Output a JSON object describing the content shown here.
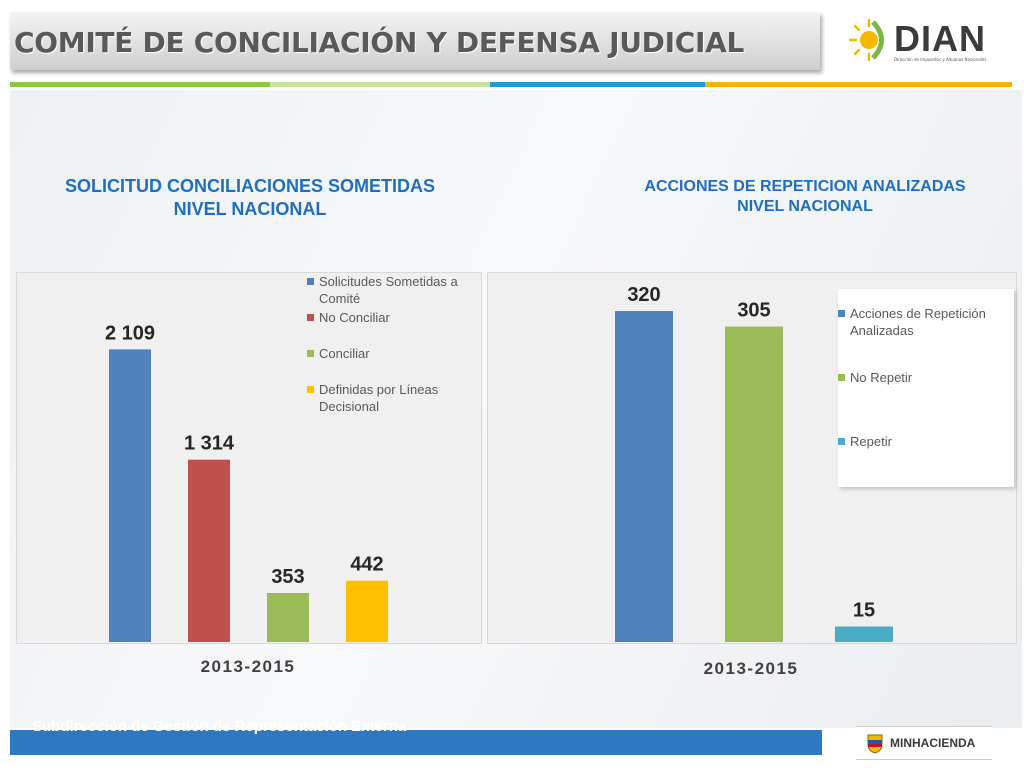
{
  "header": {
    "title": "COMITÉ DE CONCILIACIÓN Y DEFENSA JUDICIAL",
    "logo_text": "DIAN",
    "logo_subtitle": "Dirección de Impuestos y Aduanas Nacionales"
  },
  "footer": {
    "text": "Subdirección de Gestión de Representación Externa",
    "ministry": "MINHACIENDA"
  },
  "colors": {
    "title_text": "#595959",
    "chart_title": "#1f6fbf",
    "footer_bar": "#2d78c0",
    "stripe_green": "#8dc63f",
    "stripe_lightgreen": "#c7e29b",
    "stripe_blue": "#1e9ad6",
    "stripe_yellow": "#f5b800"
  },
  "chart_data": [
    {
      "type": "bar",
      "title": "SOLICITUD CONCILIACIONES SOMETIDAS NIVEL NACIONAL",
      "title_lines": [
        "SOLICITUD CONCILIACIONES SOMETIDAS",
        "NIVEL NACIONAL"
      ],
      "xlabel": "2013-2015",
      "ylim": [
        0,
        2400
      ],
      "grid": false,
      "legend_position": "top-right",
      "series": [
        {
          "name": "Solicitudes Sometidas a Comité",
          "value": 2109,
          "label": "2 109",
          "color": "#4f81bd"
        },
        {
          "name": "No Conciliar",
          "value": 1314,
          "label": "1 314",
          "color": "#c0504d"
        },
        {
          "name": "Conciliar",
          "value": 353,
          "label": "353",
          "color": "#9bbb59"
        },
        {
          "name": "Definidas por Líneas Decisional",
          "value": 442,
          "label": "442",
          "color": "#ffc000"
        }
      ]
    },
    {
      "type": "bar",
      "title": "ACCIONES DE REPETICION ANALIZADAS NIVEL NACIONAL",
      "title_lines": [
        "ACCIONES DE REPETICION ANALIZADAS",
        "NIVEL NACIONAL"
      ],
      "xlabel": "2013-2015",
      "ylim": [
        0,
        350
      ],
      "grid": false,
      "legend_position": "top-right",
      "series": [
        {
          "name": "Acciones de Repetición Analizadas",
          "value": 320,
          "label": "320",
          "color": "#4f81bd"
        },
        {
          "name": "No Repetir",
          "value": 305,
          "label": "305",
          "color": "#9bbb59"
        },
        {
          "name": "Repetir",
          "value": 15,
          "label": "15",
          "color": "#4bacc6"
        }
      ]
    }
  ]
}
